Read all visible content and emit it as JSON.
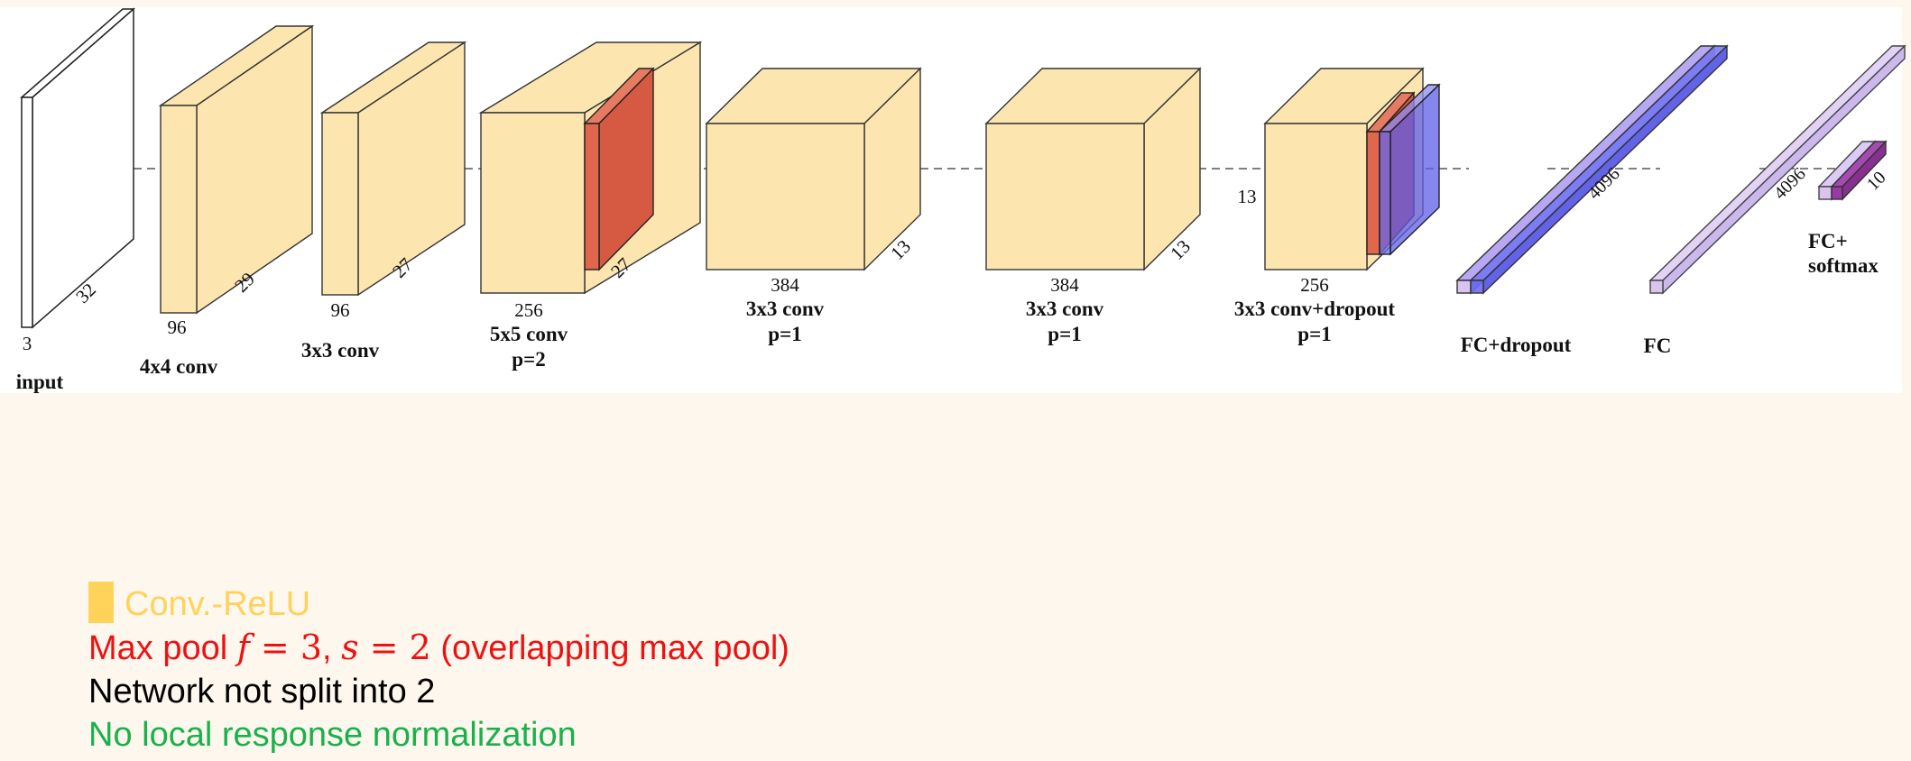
{
  "layers": [
    {
      "id": "input",
      "dims": [
        "3",
        "32"
      ],
      "labels": [
        "input"
      ]
    },
    {
      "id": "conv1",
      "dims": [
        "96",
        "29"
      ],
      "labels": [
        "4x4 conv"
      ]
    },
    {
      "id": "conv2",
      "dims": [
        "96",
        "27"
      ],
      "labels": [
        "3x3 conv"
      ]
    },
    {
      "id": "conv3",
      "dims": [
        "256",
        "27"
      ],
      "labels": [
        "5x5 conv",
        "p=2"
      ]
    },
    {
      "id": "conv4",
      "dims": [
        "384",
        "13"
      ],
      "labels": [
        "3x3 conv",
        "p=1"
      ]
    },
    {
      "id": "conv5",
      "dims": [
        "384",
        "13"
      ],
      "labels": [
        "3x3 conv",
        "p=1"
      ]
    },
    {
      "id": "conv6",
      "dims": [
        "13",
        "256"
      ],
      "labels": [
        "3x3 conv+dropout",
        "p=1"
      ]
    },
    {
      "id": "fc1",
      "dims": [
        "4096"
      ],
      "labels": [
        "FC+dropout"
      ]
    },
    {
      "id": "fc2",
      "dims": [
        "4096"
      ],
      "labels": [
        "FC"
      ]
    },
    {
      "id": "fc3",
      "dims": [
        "10"
      ],
      "labels": [
        "FC+",
        "softmax"
      ]
    }
  ],
  "legend": {
    "conv_relu": "Conv.-ReLU",
    "maxpool_prefix": "Max pool ",
    "f_symbol": "f",
    "equals": " = ",
    "f_value": "3",
    "comma": ", ",
    "s_symbol": "s",
    "s_value": "2",
    "maxpool_suffix": " (overlapping max pool)",
    "not_split": "Network not split into 2",
    "no_lrn": "No local response normalization"
  },
  "colors": {
    "conv": "#fde5b0",
    "pool": "#e0674e",
    "dropout": "#6b6bf0",
    "fc": "#d9c4ef",
    "fc_dark": "#9a3aa8",
    "legend_conv": "#ffd35a",
    "legend_pool": "#ee1111",
    "legend_split": "#000000",
    "legend_lrn": "#19b24a"
  }
}
